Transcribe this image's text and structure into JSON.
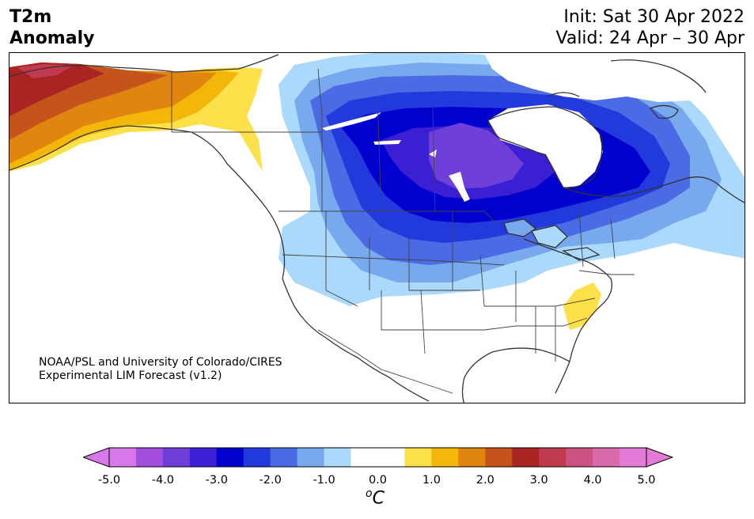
{
  "title": {
    "line1": "T2m",
    "line2": "Anomaly"
  },
  "header_right": {
    "init": "Init: Sat 30 Apr 2022",
    "valid": "Valid: 24 Apr – 30 Apr"
  },
  "credit": {
    "line1": "NOAA/PSL and University of Colorado/CIRES",
    "line2": "Experimental LIM Forecast (v1.2)"
  },
  "colorbar": {
    "ticks": [
      "-5.0",
      "-4.0",
      "-3.0",
      "-2.0",
      "-1.0",
      "0.0",
      "1.0",
      "2.0",
      "3.0",
      "4.0",
      "5.0"
    ],
    "unit_base": "C",
    "unit_sup": "o",
    "extend": "both",
    "colors": [
      "#d877e8",
      "#a24fdd",
      "#6f3fd9",
      "#3b1fd2",
      "#0000cf",
      "#2239db",
      "#4a6be3",
      "#78a9ee",
      "#abd9fb",
      "#ffffff",
      "#ffffff",
      "#fde04a",
      "#f3b70a",
      "#e0850f",
      "#c4541b",
      "#aa2424",
      "#c13b4e",
      "#cc5283",
      "#d96aad",
      "#e27ad6"
    ],
    "under_color": "#d877e8",
    "over_color": "#e27ad6"
  },
  "map": {
    "region": "North America",
    "variable": "2m temperature anomaly",
    "coast_color": "#333333",
    "border_color": "#444444"
  }
}
